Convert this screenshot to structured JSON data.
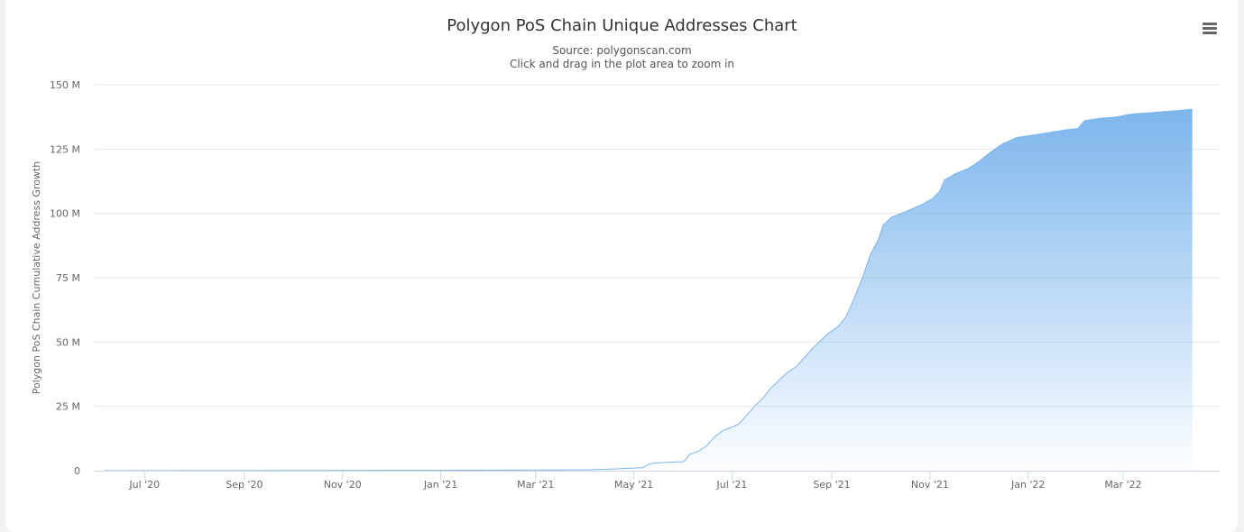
{
  "header": {
    "title": "Polygon PoS Chain Unique Addresses Chart",
    "subtitle_line1": "Source: polygonscan.com",
    "subtitle_line2": "Click and drag in the plot area to zoom in"
  },
  "menu": {
    "icon": "hamburger-menu-icon"
  },
  "colors": {
    "area_top": "#7cb5ec",
    "line": "#7cb5ec",
    "grid": "#e6e6e6",
    "axis": "#ccd6eb"
  },
  "chart_data": {
    "type": "area",
    "title": "Polygon PoS Chain Unique Addresses Chart",
    "subtitle": "Source: polygonscan.com",
    "xlabel": "",
    "ylabel": "Polygon PoS Chain Cumulative Address Growth",
    "xlim": [
      "2020-05-31",
      "2022-04-30"
    ],
    "ylim": [
      0,
      150000000
    ],
    "y_ticks": [
      {
        "value": 0,
        "label": "0"
      },
      {
        "value": 25000000,
        "label": "25 M"
      },
      {
        "value": 50000000,
        "label": "50 M"
      },
      {
        "value": 75000000,
        "label": "75 M"
      },
      {
        "value": 100000000,
        "label": "100 M"
      },
      {
        "value": 125000000,
        "label": "125 M"
      },
      {
        "value": 150000000,
        "label": "150 M"
      }
    ],
    "x_ticks": [
      {
        "date": "2020-07-01",
        "label": "Jul '20"
      },
      {
        "date": "2020-09-01",
        "label": "Sep '20"
      },
      {
        "date": "2020-11-01",
        "label": "Nov '20"
      },
      {
        "date": "2021-01-01",
        "label": "Jan '21"
      },
      {
        "date": "2021-03-01",
        "label": "Mar '21"
      },
      {
        "date": "2021-05-01",
        "label": "May '21"
      },
      {
        "date": "2021-07-01",
        "label": "Jul '21"
      },
      {
        "date": "2021-09-01",
        "label": "Sep '21"
      },
      {
        "date": "2021-11-01",
        "label": "Nov '21"
      },
      {
        "date": "2022-01-01",
        "label": "Jan '22"
      },
      {
        "date": "2022-03-01",
        "label": "Mar '22"
      }
    ],
    "grid": true,
    "legend": "none",
    "series": [
      {
        "points": [
          [
            "2020-06-06",
            0
          ],
          [
            "2020-09-01",
            50000
          ],
          [
            "2021-01-01",
            150000
          ],
          [
            "2021-04-01",
            300000
          ],
          [
            "2021-04-20",
            700000
          ],
          [
            "2021-05-07",
            1200000
          ],
          [
            "2021-05-10",
            2500000
          ],
          [
            "2021-05-14",
            3000000
          ],
          [
            "2021-06-01",
            3500000
          ],
          [
            "2021-06-05",
            6500000
          ],
          [
            "2021-06-10",
            7500000
          ],
          [
            "2021-06-15",
            9500000
          ],
          [
            "2021-06-20",
            13000000
          ],
          [
            "2021-06-25",
            15500000
          ],
          [
            "2021-07-01",
            17000000
          ],
          [
            "2021-07-05",
            18000000
          ],
          [
            "2021-07-10",
            21500000
          ],
          [
            "2021-07-15",
            25000000
          ],
          [
            "2021-07-20",
            28000000
          ],
          [
            "2021-07-25",
            32000000
          ],
          [
            "2021-07-30",
            35000000
          ],
          [
            "2021-08-04",
            38000000
          ],
          [
            "2021-08-10",
            40500000
          ],
          [
            "2021-08-15",
            44000000
          ],
          [
            "2021-08-20",
            47500000
          ],
          [
            "2021-08-25",
            50500000
          ],
          [
            "2021-08-30",
            53500000
          ],
          [
            "2021-09-05",
            56000000
          ],
          [
            "2021-09-10",
            60000000
          ],
          [
            "2021-09-15",
            67000000
          ],
          [
            "2021-09-20",
            75000000
          ],
          [
            "2021-09-25",
            84000000
          ],
          [
            "2021-09-30",
            90000000
          ],
          [
            "2021-10-03",
            95500000
          ],
          [
            "2021-10-08",
            98500000
          ],
          [
            "2021-10-14",
            100000000
          ],
          [
            "2021-10-20",
            101500000
          ],
          [
            "2021-10-27",
            103500000
          ],
          [
            "2021-11-02",
            105500000
          ],
          [
            "2021-11-07",
            108500000
          ],
          [
            "2021-11-10",
            113000000
          ],
          [
            "2021-11-17",
            115500000
          ],
          [
            "2021-11-25",
            117500000
          ],
          [
            "2021-12-01",
            120000000
          ],
          [
            "2021-12-08",
            123500000
          ],
          [
            "2021-12-16",
            127000000
          ],
          [
            "2021-12-25",
            129500000
          ],
          [
            "2022-01-05",
            130500000
          ],
          [
            "2022-01-15",
            131500000
          ],
          [
            "2022-01-25",
            132500000
          ],
          [
            "2022-02-01",
            133000000
          ],
          [
            "2022-02-05",
            136000000
          ],
          [
            "2022-02-15",
            137000000
          ],
          [
            "2022-02-25",
            137500000
          ],
          [
            "2022-03-05",
            138500000
          ],
          [
            "2022-03-15",
            139000000
          ],
          [
            "2022-03-25",
            139500000
          ],
          [
            "2022-04-05",
            140000000
          ],
          [
            "2022-04-13",
            140500000
          ]
        ]
      }
    ]
  }
}
